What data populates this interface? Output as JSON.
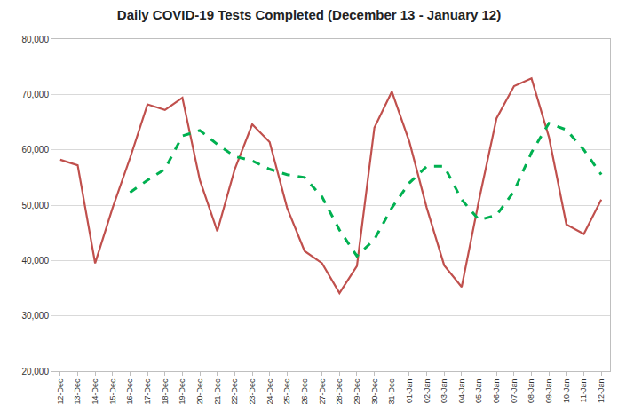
{
  "chart_data": {
    "type": "line",
    "title": "Daily COVID-19 Tests Completed (December 13 - January 12)",
    "categories": [
      "12-Dec",
      "13-Dec",
      "14-Dec",
      "15-Dec",
      "16-Dec",
      "17-Dec",
      "18-Dec",
      "19-Dec",
      "20-Dec",
      "21-Dec",
      "22-Dec",
      "23-Dec",
      "24-Dec",
      "25-Dec",
      "26-Dec",
      "27-Dec",
      "28-Dec",
      "29-Dec",
      "30-Dec",
      "31-Dec",
      "01-Jan",
      "02-Jan",
      "03-Jan",
      "04-Jan",
      "05-Jan",
      "06-Jan",
      "07-Jan",
      "08-Jan",
      "09-Jan",
      "10-Jan",
      "11-Jan",
      "12-Jan"
    ],
    "series": [
      {
        "color": "#c0504d",
        "line_style": "solid",
        "values": [
          58200,
          57200,
          39500,
          49500,
          58500,
          68200,
          67200,
          69400,
          54500,
          45300,
          56500,
          64600,
          61400,
          49500,
          41700,
          39500,
          34100,
          39000,
          64000,
          70500,
          61500,
          49500,
          39100,
          35200,
          51000,
          65700,
          71500,
          72900,
          62300,
          46500,
          44800,
          51000
        ]
      },
      {
        "color": "#00b050",
        "line_style": "dashed",
        "values": [
          null,
          null,
          null,
          null,
          52300,
          54500,
          56500,
          62500,
          63500,
          61000,
          58800,
          58000,
          56500,
          55500,
          55000,
          51500,
          45500,
          40800,
          43800,
          49500,
          54000,
          57000,
          57000,
          51000,
          47300,
          48200,
          52500,
          59500,
          64800,
          63600,
          60000,
          55500
        ]
      }
    ],
    "ylim": [
      20000,
      80000
    ],
    "yticks": [
      {
        "value": 20000,
        "label": "20,000"
      },
      {
        "value": 30000,
        "label": "30,000"
      },
      {
        "value": 40000,
        "label": "40,000"
      },
      {
        "value": 50000,
        "label": "50,000"
      },
      {
        "value": 60000,
        "label": "60,000"
      },
      {
        "value": 70000,
        "label": "70,000"
      },
      {
        "value": 80000,
        "label": "80,000"
      }
    ],
    "grid": true
  }
}
